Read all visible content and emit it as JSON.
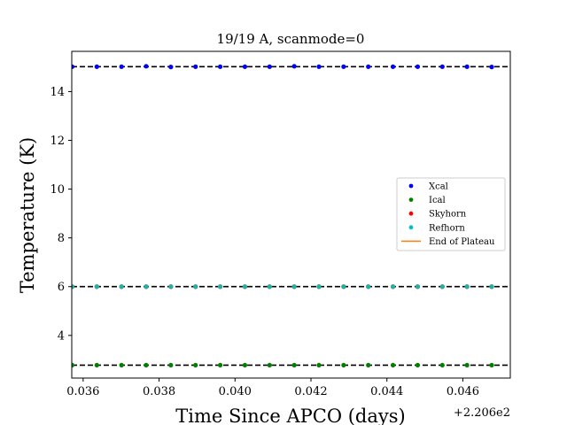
{
  "chart_data": {
    "type": "scatter",
    "title": "19/19 A, scanmode=0",
    "xlabel": "Time Since APCO (days)",
    "ylabel": "Temperature (K)",
    "x_offset_label": "+2.206e2",
    "xlim": [
      220.6357,
      220.64725
    ],
    "ylim": [
      2.25,
      15.65
    ],
    "x_ticks": [
      220.636,
      220.638,
      220.64,
      220.642,
      220.644,
      220.646
    ],
    "x_tick_labels": [
      "0.036",
      "0.038",
      "0.040",
      "0.042",
      "0.044",
      "0.046"
    ],
    "y_ticks": [
      4,
      6,
      8,
      10,
      12,
      14
    ],
    "y_tick_labels": [
      "4",
      "6",
      "8",
      "10",
      "12",
      "14"
    ],
    "grid": false,
    "legend_position": "center-right",
    "x": [
      220.63571,
      220.63636,
      220.63701,
      220.63766,
      220.63831,
      220.63896,
      220.63961,
      220.64026,
      220.64091,
      220.64156,
      220.64221,
      220.64286,
      220.64351,
      220.64416,
      220.64481,
      220.64546,
      220.64611,
      220.64676
    ],
    "series": [
      {
        "name": "Xcal",
        "color": "#0000ff",
        "values": [
          15.02,
          15.02,
          15.02,
          15.04,
          15.01,
          15.02,
          15.02,
          15.02,
          15.02,
          15.04,
          15.02,
          15.02,
          15.02,
          15.02,
          15.02,
          15.02,
          15.02,
          15.01
        ]
      },
      {
        "name": "Ical",
        "color": "#008000",
        "values": [
          2.78,
          2.78,
          2.78,
          2.78,
          2.78,
          2.78,
          2.78,
          2.78,
          2.78,
          2.78,
          2.78,
          2.78,
          2.78,
          2.78,
          2.78,
          2.78,
          2.78,
          2.78
        ]
      },
      {
        "name": "Skyhorn",
        "color": "#ff0000",
        "values": [
          6.0,
          6.0,
          6.0,
          6.0,
          6.0,
          6.0,
          6.0,
          6.0,
          6.0,
          6.0,
          6.0,
          6.0,
          6.0,
          6.0,
          6.0,
          6.0,
          6.0,
          6.0
        ]
      },
      {
        "name": "Refhorn",
        "color": "#20b2aa",
        "values": [
          6.0,
          6.0,
          6.0,
          6.0,
          6.0,
          6.0,
          6.0,
          6.0,
          6.0,
          6.0,
          6.0,
          6.0,
          6.0,
          6.0,
          6.0,
          6.0,
          6.0,
          6.0
        ]
      }
    ],
    "reference_lines": [
      15.02,
      6.0,
      2.78
    ],
    "reference_line_color": "#000000",
    "legend_entries": [
      {
        "name": "Xcal",
        "kind": "marker",
        "color": "#0000ff"
      },
      {
        "name": "Ical",
        "kind": "marker",
        "color": "#008000"
      },
      {
        "name": "Skyhorn",
        "kind": "marker",
        "color": "#ff0000"
      },
      {
        "name": "Refhorn",
        "kind": "marker",
        "color": "#00bfbf"
      },
      {
        "name": "End of Plateau",
        "kind": "line",
        "color": "#ff7f0e"
      }
    ]
  }
}
